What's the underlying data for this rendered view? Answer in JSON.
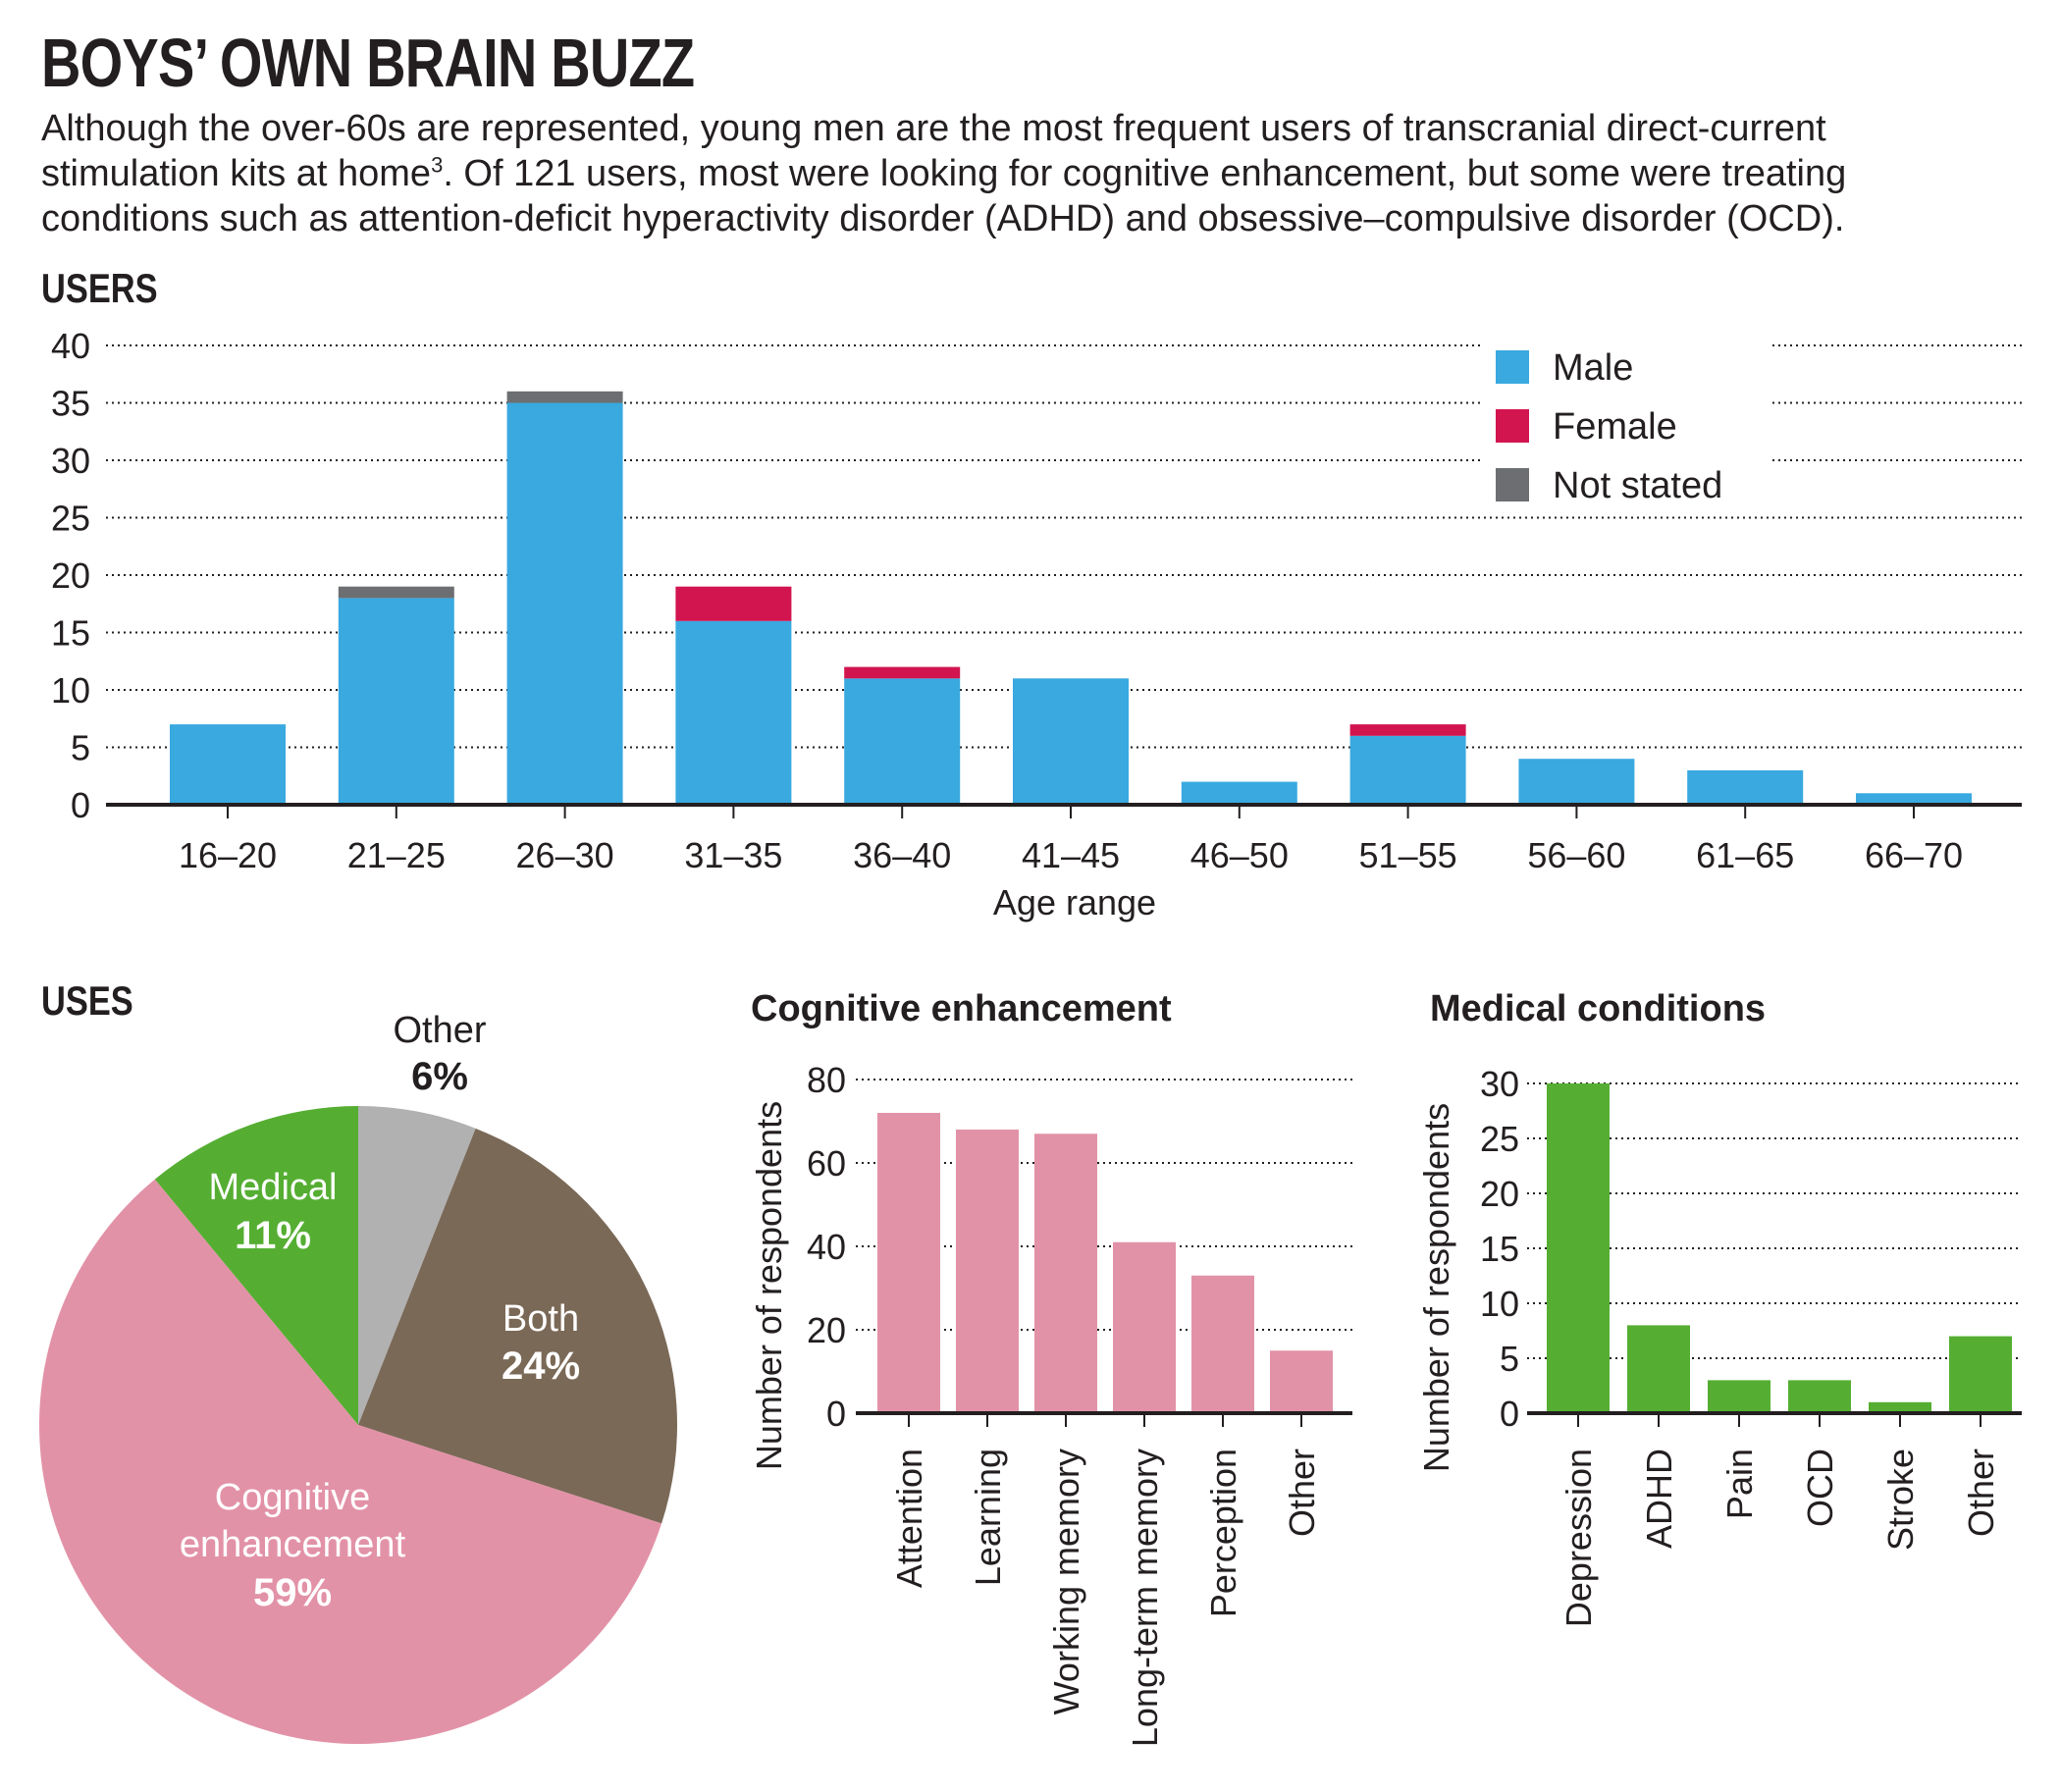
{
  "title": "BOYS’ OWN BRAIN BUZZ",
  "intro": {
    "before_sup": "Although the over-60s are represented, young men are the most frequent users of transcranial direct-current stimulation kits at home",
    "sup": "3",
    "after_sup": ". Of 121 users, most were looking for cognitive enhancement, but some were treating conditions such as attention-deficit hyperactivity disorder (ADHD) and obsessive–compulsive disorder (OCD)."
  },
  "colors": {
    "male": "#39a9e0",
    "female": "#d2144f",
    "not_stated": "#6d6e71",
    "cognitive": "#e292a7",
    "medical": "#55ae32",
    "both": "#7a6957",
    "other": "#b1b1b1",
    "text": "#231f20"
  },
  "chart_data": [
    {
      "type": "bar",
      "stacked": true,
      "title": "USERS",
      "xlabel": "Age range",
      "ylabel": "",
      "ylim": [
        0,
        40
      ],
      "yticks": [
        0,
        5,
        10,
        15,
        20,
        25,
        30,
        35,
        40
      ],
      "grid": true,
      "legend_position": "top-right",
      "categories": [
        "16–20",
        "21–25",
        "26–30",
        "31–35",
        "36–40",
        "41–45",
        "46–50",
        "51–55",
        "56–60",
        "61–65",
        "66–70"
      ],
      "series": [
        {
          "name": "Male",
          "color": "#39a9e0",
          "values": [
            7,
            18,
            35,
            16,
            11,
            11,
            2,
            6,
            4,
            3,
            1
          ]
        },
        {
          "name": "Female",
          "color": "#d2144f",
          "values": [
            0,
            0,
            0,
            3,
            1,
            0,
            0,
            1,
            0,
            0,
            0
          ]
        },
        {
          "name": "Not stated",
          "color": "#6d6e71",
          "values": [
            0,
            1,
            1,
            0,
            0,
            0,
            0,
            0,
            0,
            0,
            0
          ]
        }
      ]
    },
    {
      "type": "pie",
      "title": "USES",
      "slices": [
        {
          "label": "Other",
          "value": 6,
          "value_text": "6%",
          "color": "#b1b1b1"
        },
        {
          "label": "Both",
          "value": 24,
          "value_text": "24%",
          "color": "#7a6957"
        },
        {
          "label": "Cognitive enhancement",
          "label_lines": [
            "Cognitive",
            "enhancement"
          ],
          "value": 59,
          "value_text": "59%",
          "color": "#e292a7"
        },
        {
          "label": "Medical",
          "value": 11,
          "value_text": "11%",
          "color": "#55ae32"
        }
      ]
    },
    {
      "type": "bar",
      "title": "Cognitive enhancement",
      "xlabel": "",
      "ylabel": "Number of respondents",
      "ylim": [
        0,
        80
      ],
      "yticks": [
        0,
        20,
        40,
        60,
        80
      ],
      "grid": true,
      "categories": [
        "Attention",
        "Learning",
        "Working memory",
        "Long-term memory",
        "Perception",
        "Other"
      ],
      "values": [
        72,
        68,
        67,
        41,
        33,
        15
      ],
      "color": "#e292a7"
    },
    {
      "type": "bar",
      "title": "Medical conditions",
      "xlabel": "",
      "ylabel": "Number of respondents",
      "ylim": [
        0,
        30
      ],
      "yticks": [
        0,
        5,
        10,
        15,
        20,
        25,
        30
      ],
      "grid": true,
      "categories": [
        "Depression",
        "ADHD",
        "Pain",
        "OCD",
        "Stroke",
        "Other"
      ],
      "values": [
        30,
        8,
        3,
        3,
        1,
        7
      ],
      "color": "#55ae32"
    }
  ]
}
